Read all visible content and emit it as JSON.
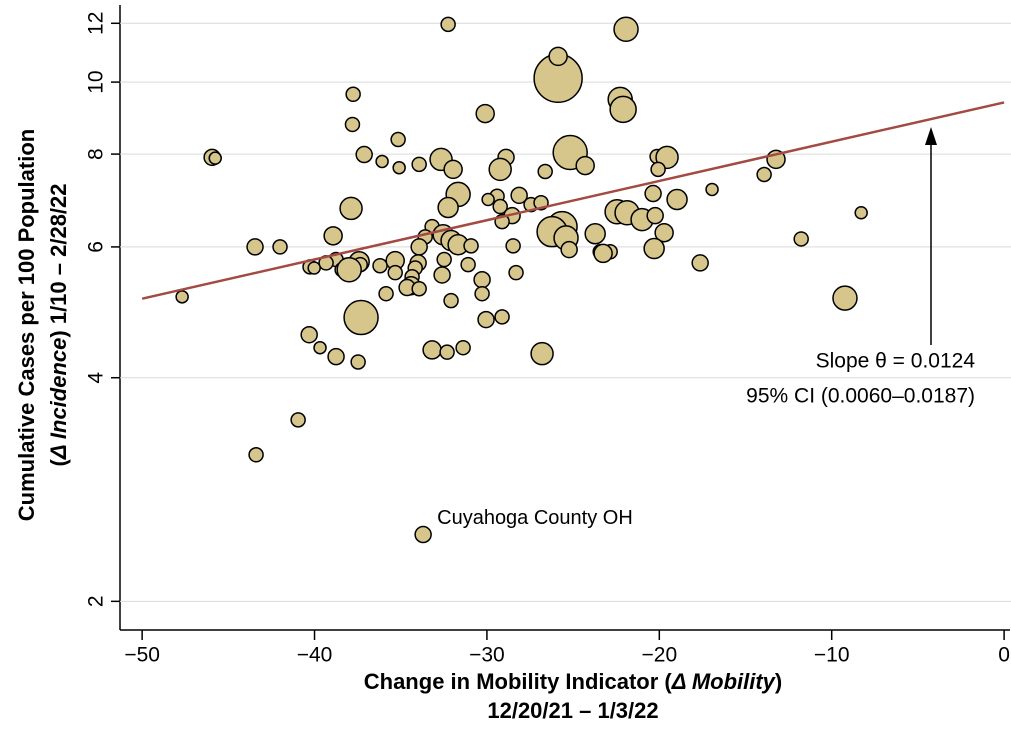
{
  "chart_data": {
    "type": "scatter",
    "log_y": true,
    "grid": true,
    "x_label": [
      "Change in Mobility Indicator (",
      "Δ Mobility",
      ")",
      "12/20/21 – 1/3/22"
    ],
    "y_label": [
      "Cumulative Cases per 100 Population",
      "(",
      "Δ Incidence",
      ") 1/10 – 2/28/22"
    ],
    "xlim": [
      -51.4,
      0.4
    ],
    "ylim": [
      1.83,
      12.7
    ],
    "xticks": [
      {
        "value": -50,
        "label": "−50"
      },
      {
        "value": -40,
        "label": "−40"
      },
      {
        "value": -30,
        "label": "−30"
      },
      {
        "value": -20,
        "label": "−20"
      },
      {
        "value": -10,
        "label": "−10"
      },
      0
    ],
    "yticks": [
      2,
      4,
      6,
      8,
      10,
      12
    ],
    "color": "#d6c68c",
    "x": [
      -32.25,
      -21.93,
      -25.87,
      -25.87,
      -22.27,
      -22.1,
      -30.1,
      -37.76,
      -37.8,
      -35.15,
      -25.17,
      -45.94,
      -45.76,
      -37.12,
      -36.08,
      -35.09,
      -33.93,
      -32.66,
      -31.96,
      -28.89,
      -29.23,
      -26.62,
      -24.3,
      -20.13,
      -19.55,
      -20.07,
      -13.23,
      -13.92,
      -16.94,
      -31.67,
      -29.41,
      -28.13,
      -29.93,
      -27.44,
      -26.86,
      -29.23,
      -28.54,
      -20.36,
      -18.97,
      -37.88,
      -32.25,
      -22.45,
      -21.87,
      -21.0,
      -20.24,
      -19.72,
      -8.29,
      -33.18,
      -25.64,
      -26.22,
      -25.41,
      -23.72,
      -32.54,
      -32.08,
      -33.58,
      -33.93,
      -31.67,
      -30.92,
      -38.92,
      -43.45,
      -42.0,
      -29.12,
      -28.48,
      -25.23,
      -23.43,
      -22.85,
      -23.26,
      -20.3,
      -11.77,
      -33.99,
      -32.48,
      -37.41,
      -38.75,
      -39.33,
      -40.26,
      -40.02,
      -38.05,
      -38.4,
      -37.35,
      -36.2,
      -35.32,
      -34.16,
      -31.09,
      -17.63,
      -35.32,
      -34.34,
      -32.6,
      -37.99,
      -30.28,
      -28.31,
      -34.4,
      -34.63,
      -33.93,
      -35.85,
      -30.28,
      -32.08,
      -9.23,
      -47.68,
      -37.3,
      -30.05,
      -29.12,
      -40.31,
      -39.68,
      -38.75,
      -37.47,
      -33.18,
      -32.31,
      -31.38,
      -26.8,
      -40.95,
      -43.39,
      -33.7
    ],
    "y": [
      11.96,
      11.78,
      10.12,
      10.83,
      9.48,
      9.19,
      9.07,
      9.63,
      8.77,
      8.37,
      8.04,
      7.92,
      7.9,
      7.99,
      7.82,
      7.67,
      7.75,
      7.87,
      7.63,
      7.92,
      7.63,
      7.58,
      7.72,
      7.94,
      7.92,
      7.63,
      7.87,
      7.51,
      7.17,
      7.06,
      7.02,
      7.04,
      6.95,
      6.84,
      6.88,
      6.8,
      6.61,
      7.08,
      6.95,
      6.76,
      6.78,
      6.69,
      6.67,
      6.53,
      6.61,
      6.27,
      6.67,
      6.39,
      6.39,
      6.29,
      6.17,
      6.25,
      6.23,
      6.12,
      6.19,
      6.0,
      6.04,
      6.02,
      6.21,
      6.0,
      6.0,
      6.49,
      6.02,
      5.95,
      5.91,
      5.91,
      5.88,
      5.97,
      6.15,
      5.71,
      5.77,
      5.73,
      5.77,
      5.71,
      5.64,
      5.62,
      5.62,
      5.59,
      5.68,
      5.66,
      5.75,
      5.62,
      5.68,
      5.71,
      5.54,
      5.47,
      5.5,
      5.59,
      5.42,
      5.54,
      5.32,
      5.29,
      5.27,
      5.19,
      5.19,
      5.08,
      5.12,
      5.14,
      4.82,
      4.79,
      4.83,
      4.57,
      4.39,
      4.27,
      4.2,
      4.36,
      4.33,
      4.39,
      4.31,
      3.51,
      3.15,
      2.46
    ],
    "sizes": [
      7,
      12,
      24,
      9,
      12,
      13,
      9,
      7,
      7,
      7,
      17,
      8,
      6,
      8,
      6,
      6,
      7,
      11,
      9,
      8,
      11,
      7,
      9,
      7,
      11,
      7,
      9,
      7,
      6,
      12,
      7,
      8,
      6,
      7,
      7,
      7,
      8,
      8,
      10,
      11,
      10,
      12,
      12,
      11,
      8,
      9,
      6,
      7,
      15,
      15,
      12,
      10,
      10,
      10,
      7,
      8,
      10,
      7,
      9,
      8,
      7,
      7,
      7,
      8,
      7,
      7,
      9,
      10,
      7,
      8,
      7,
      10,
      7,
      7,
      7,
      6,
      10,
      7,
      7,
      7,
      9,
      7,
      7,
      8,
      7,
      7,
      8,
      12,
      8,
      7,
      9,
      8,
      7,
      7,
      7,
      7,
      12,
      6,
      17,
      8,
      7,
      8,
      6,
      8,
      7,
      9,
      7,
      7,
      11,
      7,
      7,
      8
    ],
    "fit_line": {
      "x": [
        -50,
        0
      ],
      "y": [
        5.11,
        9.39
      ],
      "color": "#a34a42"
    },
    "annotations": [
      "Slope θ = 0.0124",
      "95% CI (0.0060–0.0187)",
      "Cuyahoga County OH"
    ]
  }
}
